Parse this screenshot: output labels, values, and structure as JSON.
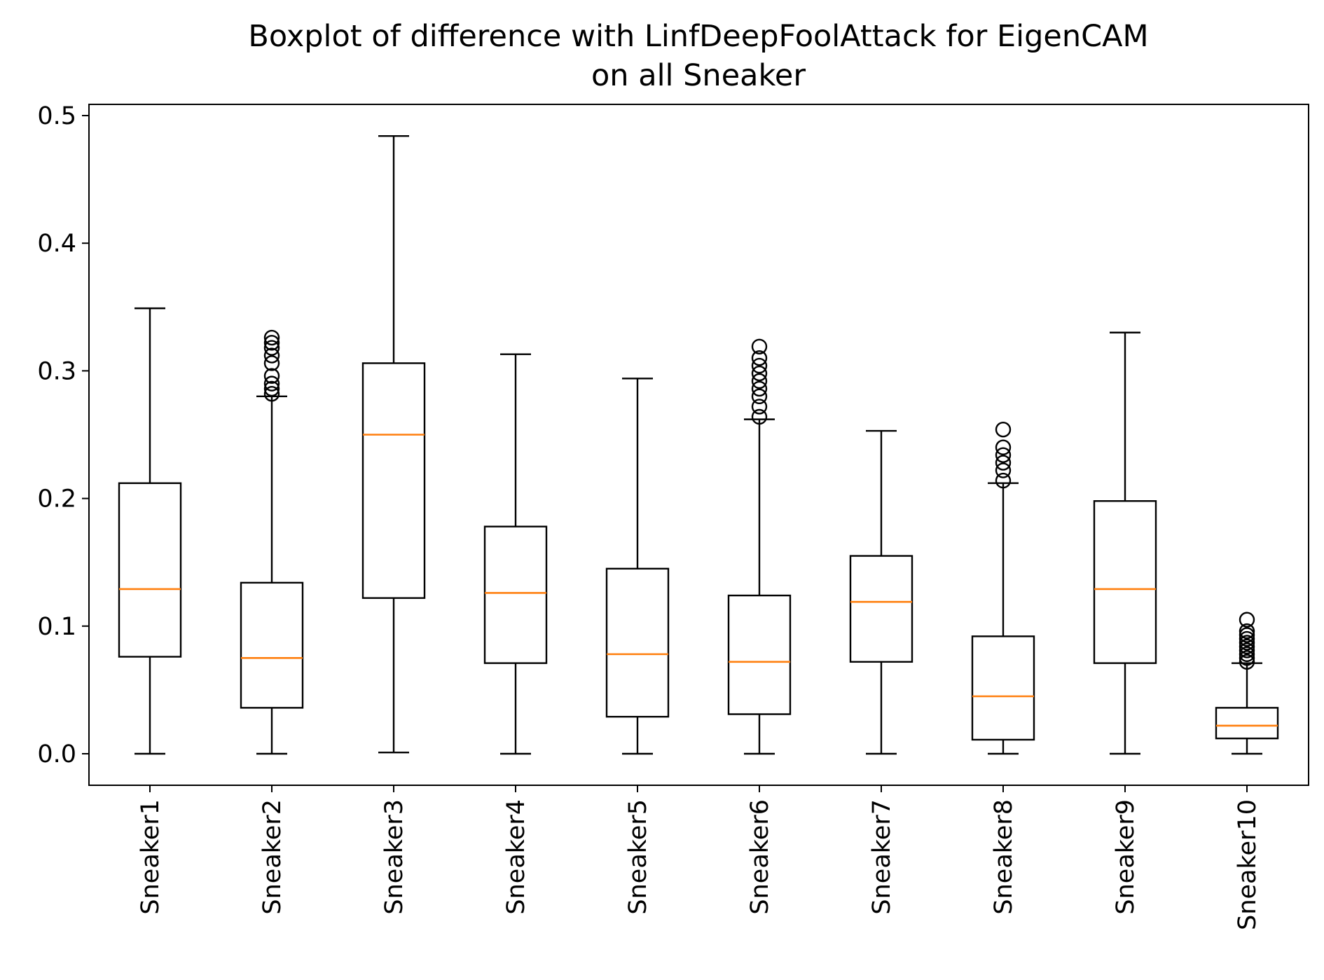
{
  "chart_data": {
    "type": "boxplot",
    "title": [
      "Boxplot of difference with LinfDeepFoolAttack for EigenCAM",
      "on all Sneaker"
    ],
    "xlabel": "",
    "ylabel": "",
    "ylim": [
      -0.025,
      0.51
    ],
    "yticks": [
      {
        "value": 0.0,
        "label": "0.0"
      },
      {
        "value": 0.1,
        "label": "0.1"
      },
      {
        "value": 0.2,
        "label": "0.2"
      },
      {
        "value": 0.3,
        "label": "0.3"
      },
      {
        "value": 0.4,
        "label": "0.4"
      },
      {
        "value": 0.5,
        "label": "0.5"
      }
    ],
    "grid": false,
    "colors": {
      "box": "#000000",
      "median": "#ff7f0e",
      "axis": "#000000"
    },
    "categories": [
      "Sneaker1",
      "Sneaker2",
      "Sneaker3",
      "Sneaker4",
      "Sneaker5",
      "Sneaker6",
      "Sneaker7",
      "Sneaker8",
      "Sneaker9",
      "Sneaker10"
    ],
    "boxes": [
      {
        "whisker_low": 0.0,
        "q1": 0.076,
        "median": 0.129,
        "q3": 0.212,
        "whisker_high": 0.349,
        "outliers": []
      },
      {
        "whisker_low": 0.0,
        "q1": 0.036,
        "median": 0.075,
        "q3": 0.134,
        "whisker_high": 0.28,
        "outliers": [
          0.282,
          0.286,
          0.29,
          0.296,
          0.306,
          0.312,
          0.318,
          0.322,
          0.326
        ]
      },
      {
        "whisker_low": 0.001,
        "q1": 0.122,
        "median": 0.25,
        "q3": 0.306,
        "whisker_high": 0.484,
        "outliers": []
      },
      {
        "whisker_low": 0.0,
        "q1": 0.071,
        "median": 0.126,
        "q3": 0.178,
        "whisker_high": 0.313,
        "outliers": []
      },
      {
        "whisker_low": 0.0,
        "q1": 0.029,
        "median": 0.078,
        "q3": 0.145,
        "whisker_high": 0.294,
        "outliers": []
      },
      {
        "whisker_low": 0.0,
        "q1": 0.031,
        "median": 0.072,
        "q3": 0.124,
        "whisker_high": 0.262,
        "outliers": [
          0.264,
          0.272,
          0.28,
          0.286,
          0.292,
          0.298,
          0.304,
          0.31,
          0.319
        ]
      },
      {
        "whisker_low": 0.0,
        "q1": 0.072,
        "median": 0.119,
        "q3": 0.155,
        "whisker_high": 0.253,
        "outliers": []
      },
      {
        "whisker_low": 0.0,
        "q1": 0.011,
        "median": 0.045,
        "q3": 0.092,
        "whisker_high": 0.212,
        "outliers": [
          0.214,
          0.222,
          0.228,
          0.234,
          0.24,
          0.254
        ]
      },
      {
        "whisker_low": 0.0,
        "q1": 0.071,
        "median": 0.129,
        "q3": 0.198,
        "whisker_high": 0.33,
        "outliers": []
      },
      {
        "whisker_low": 0.0,
        "q1": 0.012,
        "median": 0.022,
        "q3": 0.036,
        "whisker_high": 0.071,
        "outliers": [
          0.072,
          0.075,
          0.078,
          0.081,
          0.084,
          0.087,
          0.09,
          0.093,
          0.096,
          0.105
        ]
      }
    ]
  }
}
